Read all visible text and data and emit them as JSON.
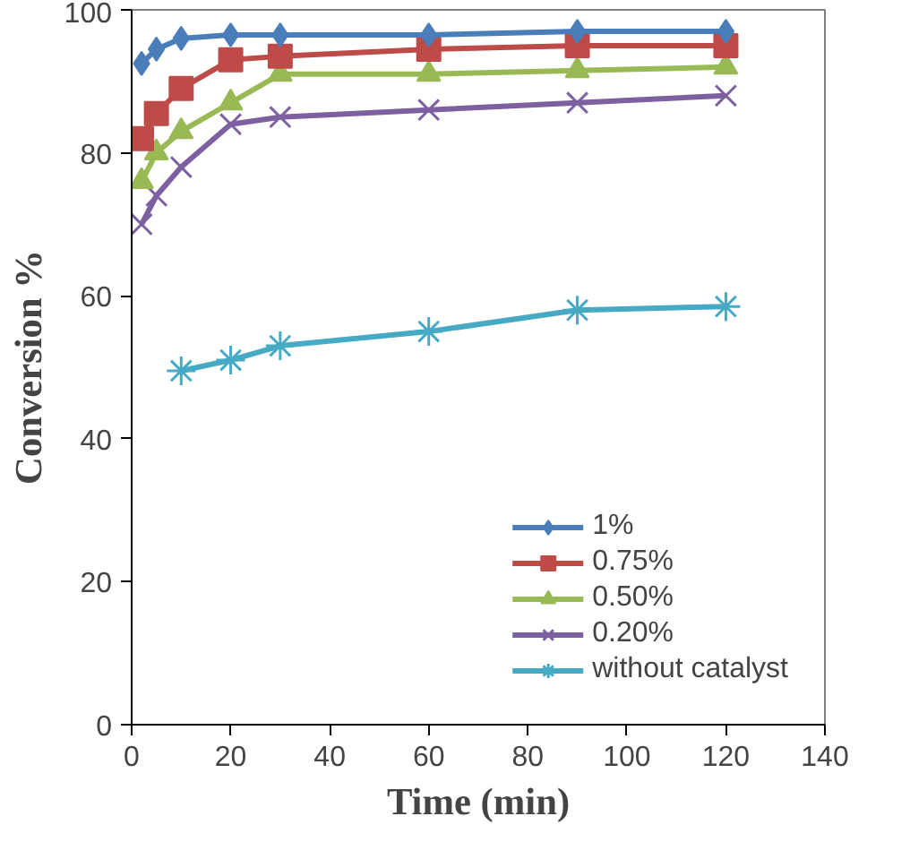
{
  "chart_data": {
    "type": "line",
    "xlabel": "Time (min)",
    "ylabel": "Conversion %",
    "xlim": [
      0,
      140
    ],
    "xticks": [
      0,
      20,
      40,
      60,
      80,
      100,
      120,
      140
    ],
    "ylim": [
      0,
      100
    ],
    "yticks": [
      0,
      20,
      40,
      60,
      80,
      100
    ],
    "grid": false,
    "legend": "bottom right",
    "series": [
      {
        "name": "1%",
        "color": "#4a7ebb",
        "marker": "diamond",
        "x": [
          2,
          5,
          10,
          20,
          30,
          60,
          90,
          120
        ],
        "values": [
          92.5,
          94.5,
          96,
          96.5,
          96.5,
          96.5,
          97,
          97
        ]
      },
      {
        "name": "0.75%",
        "color": "#be4b48",
        "marker": "square",
        "x": [
          2,
          5,
          10,
          20,
          30,
          60,
          90,
          120
        ],
        "values": [
          82,
          85.5,
          89,
          93,
          93.5,
          94.5,
          95,
          95
        ]
      },
      {
        "name": "0.50%",
        "color": "#98b954",
        "marker": "triangle",
        "x": [
          2,
          5,
          10,
          20,
          30,
          60,
          90,
          120
        ],
        "values": [
          76,
          80,
          83,
          87,
          91,
          91,
          91.5,
          92
        ]
      },
      {
        "name": "0.20%",
        "color": "#7d60a0",
        "marker": "x",
        "x": [
          2,
          5,
          10,
          20,
          30,
          60,
          90,
          120
        ],
        "values": [
          70,
          74,
          78,
          84,
          85,
          86,
          87,
          88
        ]
      },
      {
        "name": "without catalyst",
        "color": "#46aac5",
        "marker": "cross",
        "x": [
          10,
          20,
          30,
          60,
          90,
          120
        ],
        "values": [
          49.5,
          51,
          53,
          55,
          58,
          58.5
        ]
      }
    ]
  }
}
